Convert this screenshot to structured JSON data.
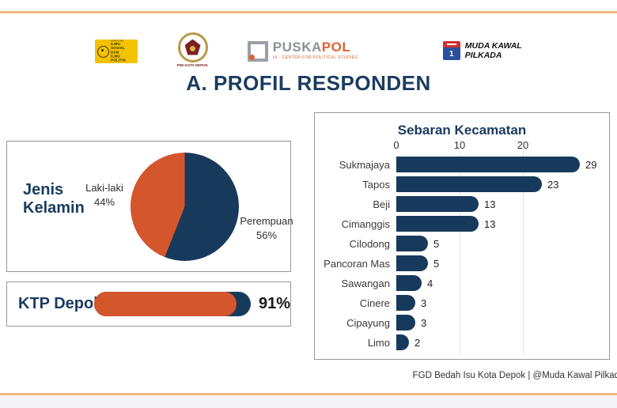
{
  "slide": {
    "title": "A. PROFIL RESPONDEN",
    "footer": "FGD Bedah Isu Kota Depok | @Muda Kawal Pilkad",
    "accent_color": "#ecba80",
    "navy": "#173a5c",
    "orange": "#d4562d"
  },
  "logos": {
    "fisip": {
      "faculty": "FAKULTAS",
      "line1": "ILMU SOSIAL",
      "line2": "DAN ILMU",
      "line3": "POLITIK"
    },
    "pwi": {
      "caption": "PWI KOTA DEPOK"
    },
    "puskapol": {
      "name_gray": "PUSKA",
      "name_orange": "POL",
      "tagline": "UI - CENTER FOR POLITICAL STUDIES"
    },
    "muda_kawal": {
      "line1": "MUDA KAWAL",
      "line2": "PILKADA",
      "ballot_number": "1"
    }
  },
  "chart_data": [
    {
      "type": "pie",
      "name": "jenis_kelamin",
      "title": "Jenis Kelamin",
      "start_angle": "top",
      "direction": "clockwise",
      "slices": [
        {
          "label": "Perempuan",
          "value": 56,
          "pct_label": "56%",
          "color": "#173a5c"
        },
        {
          "label": "Laki-laki",
          "value": 44,
          "pct_label": "44%",
          "color": "#d4562d"
        }
      ]
    },
    {
      "type": "bar",
      "name": "ktp_depok",
      "title": "KTP Depok",
      "categories": [
        "KTP Depok"
      ],
      "values": [
        91
      ],
      "value_labels": [
        "91%"
      ],
      "xlim": [
        0,
        100
      ],
      "track_color": "#173a5c",
      "fill_color": "#d4562d"
    },
    {
      "type": "bar",
      "name": "sebaran_kecamatan",
      "title": "Sebaran Kecamatan",
      "orientation": "horizontal",
      "categories": [
        "Sukmajaya",
        "Tapos",
        "Beji",
        "Cimanggis",
        "Cilodong",
        "Pancoran Mas",
        "Sawangan",
        "Cinere",
        "Cipayung",
        "Limo"
      ],
      "values": [
        29,
        23,
        13,
        13,
        5,
        5,
        4,
        3,
        3,
        2
      ],
      "axis_ticks": [
        0,
        10,
        20
      ],
      "grid_ticks": [
        10,
        20
      ],
      "xlim": [
        0,
        29
      ],
      "bar_color": "#173a5c",
      "legend": "none"
    }
  ]
}
